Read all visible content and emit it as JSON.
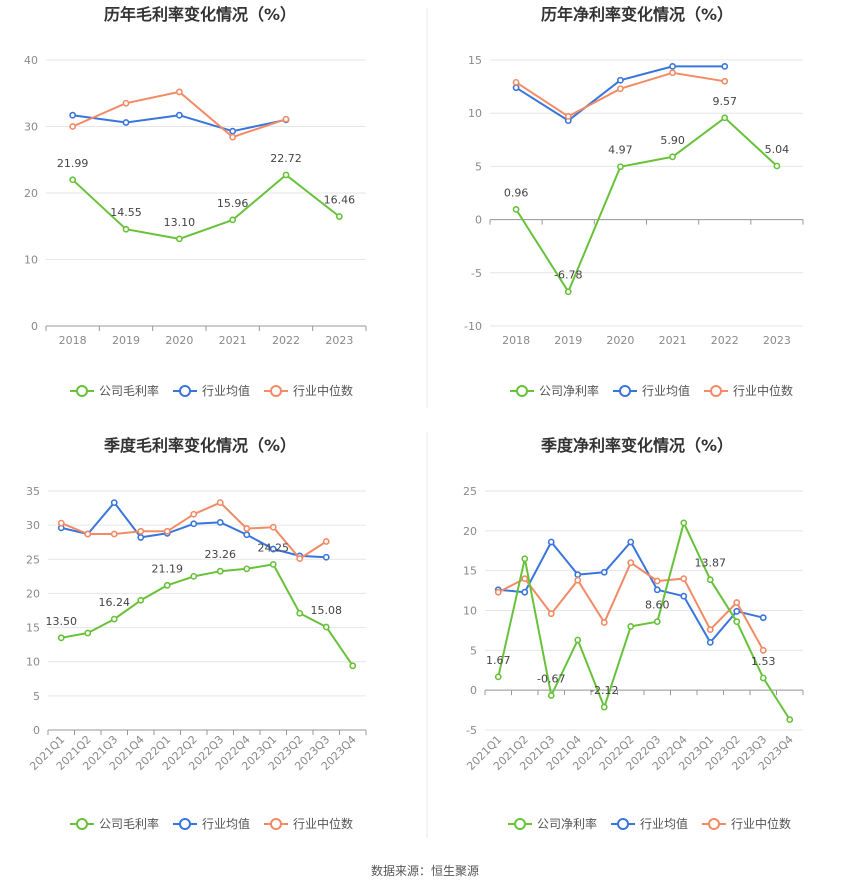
{
  "source_label": "数据来源：恒生聚源",
  "colors": {
    "company": "#67c23a",
    "industry_avg": "#3a75de",
    "industry_median": "#f28b65",
    "grid": "#e6e6e6",
    "axis": "#999999",
    "divider": "#e9e9e9"
  },
  "chart_data": [
    {
      "type": "line",
      "title": "历年毛利率变化情况（%）",
      "categories": [
        "2018",
        "2019",
        "2020",
        "2021",
        "2022",
        "2023"
      ],
      "yticks": [
        0,
        10,
        20,
        30,
        40
      ],
      "ylim": [
        0,
        40
      ],
      "rotate_x": false,
      "legend_position": "bottom",
      "grid": true,
      "series": [
        {
          "name": "公司毛利率",
          "key": "company",
          "values": [
            21.99,
            14.55,
            13.1,
            15.96,
            22.72,
            16.46
          ],
          "labels": [
            "21.99",
            "14.55",
            "13.10",
            "15.96",
            "22.72",
            "16.46"
          ]
        },
        {
          "name": "行业均值",
          "key": "industry_avg",
          "values": [
            31.7,
            30.6,
            31.7,
            29.3,
            31.0,
            null
          ]
        },
        {
          "name": "行业中位数",
          "key": "industry_median",
          "values": [
            30.0,
            33.5,
            35.2,
            28.4,
            31.1,
            null
          ]
        }
      ]
    },
    {
      "type": "line",
      "title": "历年净利率变化情况（%）",
      "categories": [
        "2018",
        "2019",
        "2020",
        "2021",
        "2022",
        "2023"
      ],
      "yticks": [
        -10,
        -5,
        0,
        5,
        10,
        15
      ],
      "ylim": [
        -10,
        15
      ],
      "rotate_x": false,
      "legend_position": "bottom",
      "grid": true,
      "series": [
        {
          "name": "公司净利率",
          "key": "company",
          "values": [
            0.96,
            -6.78,
            4.97,
            5.9,
            9.57,
            5.04
          ],
          "labels": [
            "0.96",
            "-6.78",
            "4.97",
            "5.90",
            "9.57",
            "5.04"
          ]
        },
        {
          "name": "行业均值",
          "key": "industry_avg",
          "values": [
            12.4,
            9.3,
            13.1,
            14.4,
            14.4,
            null
          ]
        },
        {
          "name": "行业中位数",
          "key": "industry_median",
          "values": [
            12.9,
            9.7,
            12.3,
            13.8,
            13.0,
            null
          ]
        }
      ]
    },
    {
      "type": "line",
      "title": "季度毛利率变化情况（%）",
      "categories": [
        "2021Q1",
        "2021Q2",
        "2021Q3",
        "2021Q4",
        "2022Q1",
        "2022Q2",
        "2022Q3",
        "2022Q4",
        "2023Q1",
        "2023Q2",
        "2023Q3",
        "2023Q4"
      ],
      "yticks": [
        0,
        5,
        10,
        15,
        20,
        25,
        30,
        35
      ],
      "ylim": [
        0,
        35
      ],
      "rotate_x": true,
      "legend_position": "bottom",
      "grid": true,
      "series": [
        {
          "name": "公司毛利率",
          "key": "company",
          "values": [
            13.5,
            14.2,
            16.24,
            19.0,
            21.19,
            22.5,
            23.26,
            23.6,
            24.25,
            17.1,
            15.08,
            9.4
          ],
          "labels": [
            "13.50",
            null,
            "16.24",
            null,
            "21.19",
            null,
            "23.26",
            null,
            "24.25",
            null,
            "15.08",
            null
          ]
        },
        {
          "name": "行业均值",
          "key": "industry_avg",
          "values": [
            29.6,
            28.7,
            33.3,
            28.2,
            28.8,
            30.2,
            30.4,
            28.6,
            26.5,
            25.5,
            25.3,
            null
          ]
        },
        {
          "name": "行业中位数",
          "key": "industry_median",
          "values": [
            30.3,
            28.7,
            28.7,
            29.1,
            29.1,
            31.6,
            33.3,
            29.5,
            29.7,
            25.1,
            27.6,
            null
          ]
        }
      ]
    },
    {
      "type": "line",
      "title": "季度净利率变化情况（%）",
      "categories": [
        "2021Q1",
        "2021Q2",
        "2021Q3",
        "2021Q4",
        "2022Q1",
        "2022Q2",
        "2022Q3",
        "2022Q4",
        "2023Q1",
        "2023Q2",
        "2023Q3",
        "2023Q4"
      ],
      "yticks": [
        -5,
        0,
        5,
        10,
        15,
        20,
        25
      ],
      "ylim": [
        -5,
        25
      ],
      "rotate_x": true,
      "legend_position": "bottom",
      "grid": true,
      "series": [
        {
          "name": "公司净利率",
          "key": "company",
          "values": [
            1.67,
            16.5,
            -0.67,
            6.3,
            -2.12,
            8.0,
            8.6,
            21.0,
            13.87,
            8.6,
            1.53,
            -3.7
          ],
          "labels": [
            "1.67",
            null,
            "-0.67",
            null,
            "-2.12",
            null,
            "8.60",
            null,
            "13.87",
            null,
            "1.53",
            null
          ]
        },
        {
          "name": "行业均值",
          "key": "industry_avg",
          "values": [
            12.6,
            12.3,
            18.6,
            14.5,
            14.8,
            18.6,
            12.6,
            11.8,
            6.0,
            9.9,
            9.1,
            null
          ]
        },
        {
          "name": "行业中位数",
          "key": "industry_median",
          "values": [
            12.3,
            14.0,
            9.6,
            13.8,
            8.5,
            16.0,
            13.7,
            14.0,
            7.6,
            11.0,
            5.0,
            null
          ]
        }
      ]
    }
  ]
}
